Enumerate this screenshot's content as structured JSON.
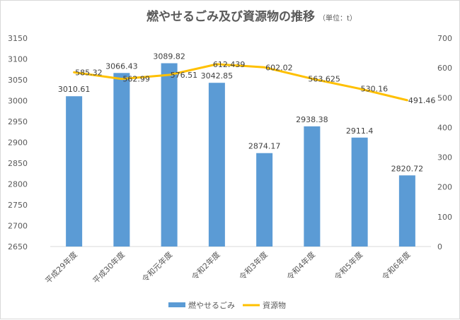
{
  "chart_data": {
    "type": "bar",
    "title": "燃やせるごみ及び資源物の推移",
    "unit_note": "（単位：t）",
    "categories": [
      "平成29年度",
      "平成30年度",
      "令和元年度",
      "令和2年度",
      "令和3年度",
      "令和4年度",
      "令和5年度",
      "令和6年度"
    ],
    "series": [
      {
        "name": "燃やせるごみ",
        "kind": "bar",
        "axis": "left",
        "color": "#5b9bd5",
        "values": [
          3010.61,
          3066.43,
          3089.82,
          3042.85,
          2874.17,
          2938.38,
          2911.4,
          2820.72
        ],
        "labels": [
          "3010.61",
          "3066.43",
          "3089.82",
          "3042.85",
          "2874.17",
          "2938.38",
          "2911.4",
          "2820.72"
        ]
      },
      {
        "name": "資源物",
        "kind": "line",
        "axis": "right",
        "color": "#ffc000",
        "values": [
          585.32,
          562.99,
          576.51,
          612.439,
          602.02,
          563.625,
          530.16,
          491.46
        ],
        "labels": [
          "585.32",
          "562.99",
          "576.51",
          "612.439",
          "602.02",
          "563.625",
          "530.16",
          "491.46"
        ]
      }
    ],
    "y_left": {
      "min": 2650,
      "max": 3150,
      "ticks": [
        2650,
        2700,
        2750,
        2800,
        2850,
        2900,
        2950,
        3000,
        3050,
        3100,
        3150
      ]
    },
    "y_right": {
      "min": 0,
      "max": 700,
      "ticks": [
        0,
        100,
        200,
        300,
        400,
        500,
        600,
        700
      ]
    },
    "grid": false,
    "legend_position": "bottom"
  }
}
